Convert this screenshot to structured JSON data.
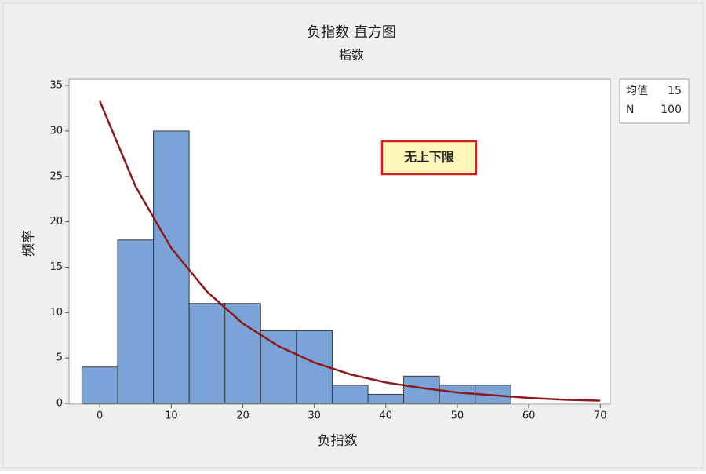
{
  "chart_data": {
    "type": "histogram",
    "title": "负指数 直方图",
    "subtitle": "指数",
    "x_label": "负指数",
    "y_label": "频率",
    "bins": [
      -2.5,
      2.5,
      7.5,
      12.5,
      17.5,
      22.5,
      27.5,
      32.5,
      37.5,
      42.5,
      47.5,
      52.5,
      57.5
    ],
    "counts": [
      4,
      18,
      30,
      11,
      11,
      8,
      8,
      2,
      1,
      3,
      2,
      2
    ],
    "color": "#7ba3d8",
    "fit": {
      "x": [
        0,
        5,
        10,
        15,
        20,
        25,
        30,
        35,
        40,
        45,
        50,
        55,
        60,
        65,
        70
      ],
      "y": [
        33.3,
        23.9,
        17.1,
        12.3,
        8.8,
        6.3,
        4.5,
        3.2,
        2.3,
        1.7,
        1.2,
        0.9,
        0.6,
        0.4,
        0.3
      ],
      "color": "#8b1a1a"
    },
    "xlim": [
      -4.3,
      71.4
    ],
    "ylim": [
      0,
      35.7
    ],
    "xticks": [
      0,
      10,
      20,
      30,
      40,
      50,
      60,
      70
    ],
    "yticks": [
      0,
      5,
      10,
      15,
      20,
      25,
      30,
      35
    ],
    "stats": [
      {
        "label": "均值",
        "value": 15
      },
      {
        "label": "N",
        "value": 100
      }
    ],
    "annotation": "无上下限"
  }
}
